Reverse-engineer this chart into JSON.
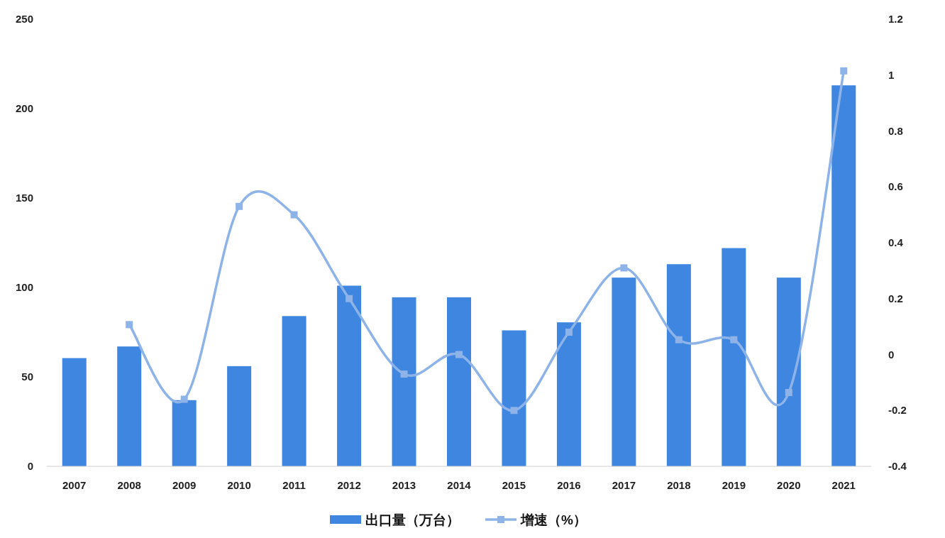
{
  "chart_data": {
    "type": "bar",
    "categories": [
      "2007",
      "2008",
      "2009",
      "2010",
      "2011",
      "2012",
      "2013",
      "2014",
      "2015",
      "2016",
      "2017",
      "2018",
      "2019",
      "2020",
      "2021"
    ],
    "series": [
      {
        "name": "出口量（万台）",
        "color": "#3f86e0",
        "values": [
          60.5,
          67,
          37,
          56,
          84,
          101,
          94.5,
          94.5,
          76,
          80.5,
          105.5,
          113,
          122,
          105.5,
          213
        ]
      },
      {
        "name": "增速（%）",
        "type": "line",
        "axis": "y2",
        "color": "#8db3e8",
        "marker": "square",
        "values": [
          null,
          0.107,
          -0.16,
          0.53,
          0.5,
          0.2,
          -0.07,
          0,
          -0.2,
          0.08,
          0.31,
          0.053,
          0.053,
          -0.136,
          1.015
        ]
      }
    ],
    "ylim": [
      0,
      250
    ],
    "yticks": [
      0,
      50,
      100,
      150,
      200,
      250
    ],
    "y2lim": [
      -0.4,
      1.2
    ],
    "y2ticks": [
      {
        "value": -0.4,
        "label": "-0.4"
      },
      {
        "value": -0.2,
        "label": "-0.2"
      },
      0,
      0.2,
      0.4,
      0.6,
      0.8,
      1,
      1.2
    ],
    "grid": false,
    "legend": "bottom"
  }
}
